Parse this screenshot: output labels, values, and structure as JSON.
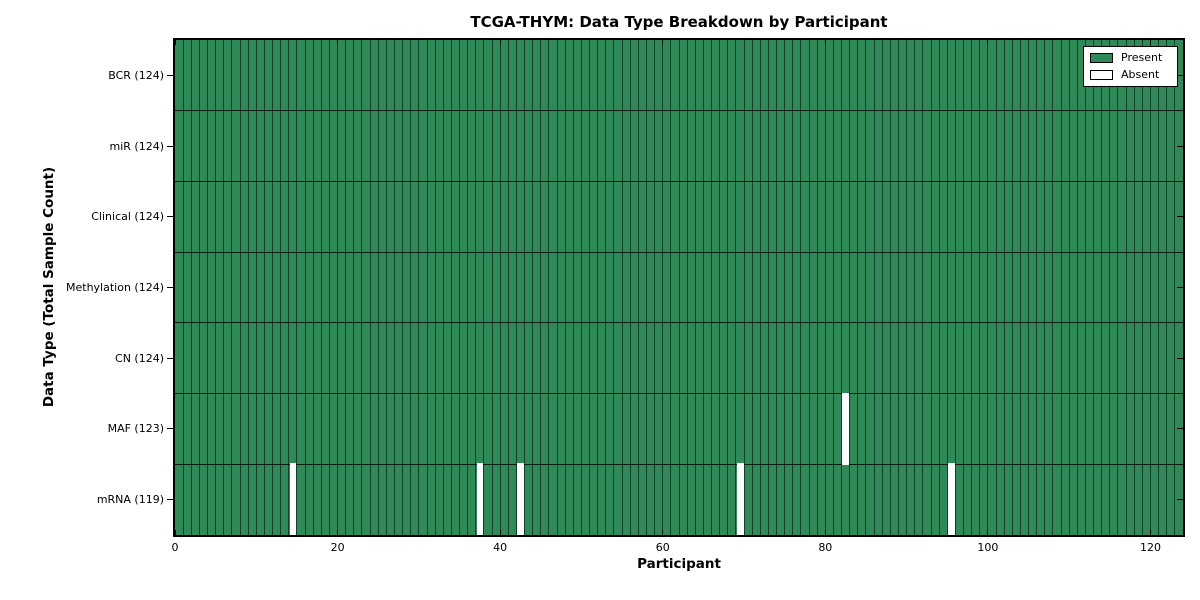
{
  "chart_data": {
    "type": "heatmap",
    "title": "TCGA-THYM: Data Type Breakdown by Participant",
    "xlabel": "Participant",
    "ylabel": "Data Type (Total Sample Count)",
    "n_participants": 124,
    "x_ticks": [
      0,
      20,
      40,
      60,
      80,
      100,
      120
    ],
    "rows": [
      {
        "data_type": "BCR",
        "label": "BCR (124)",
        "present_count": 124,
        "absent_participants": []
      },
      {
        "data_type": "miR",
        "label": "miR (124)",
        "present_count": 124,
        "absent_participants": []
      },
      {
        "data_type": "Clinical",
        "label": "Clinical (124)",
        "present_count": 124,
        "absent_participants": []
      },
      {
        "data_type": "Methylation",
        "label": "Methylation (124)",
        "present_count": 124,
        "absent_participants": []
      },
      {
        "data_type": "CN",
        "label": "CN (124)",
        "present_count": 124,
        "absent_participants": []
      },
      {
        "data_type": "MAF",
        "label": "MAF (123)",
        "present_count": 123,
        "absent_participants": [
          82
        ]
      },
      {
        "data_type": "mRNA",
        "label": "mRNA (119)",
        "present_count": 119,
        "absent_participants": [
          14,
          37,
          42,
          69,
          95
        ]
      }
    ],
    "legend": {
      "position": "upper right",
      "entries": [
        {
          "label": "Present",
          "color": "#2e8b57"
        },
        {
          "label": "Absent",
          "color": "#ffffff"
        }
      ]
    },
    "colors": {
      "present": "#2e8b57",
      "absent": "#ffffff",
      "cell_edge": "rgba(0,0,0,0.55)",
      "row_edge": "rgba(0,0,0,0.8)",
      "axis": "#000000"
    },
    "grid": "cell-borders",
    "x_range": [
      0,
      124
    ]
  }
}
